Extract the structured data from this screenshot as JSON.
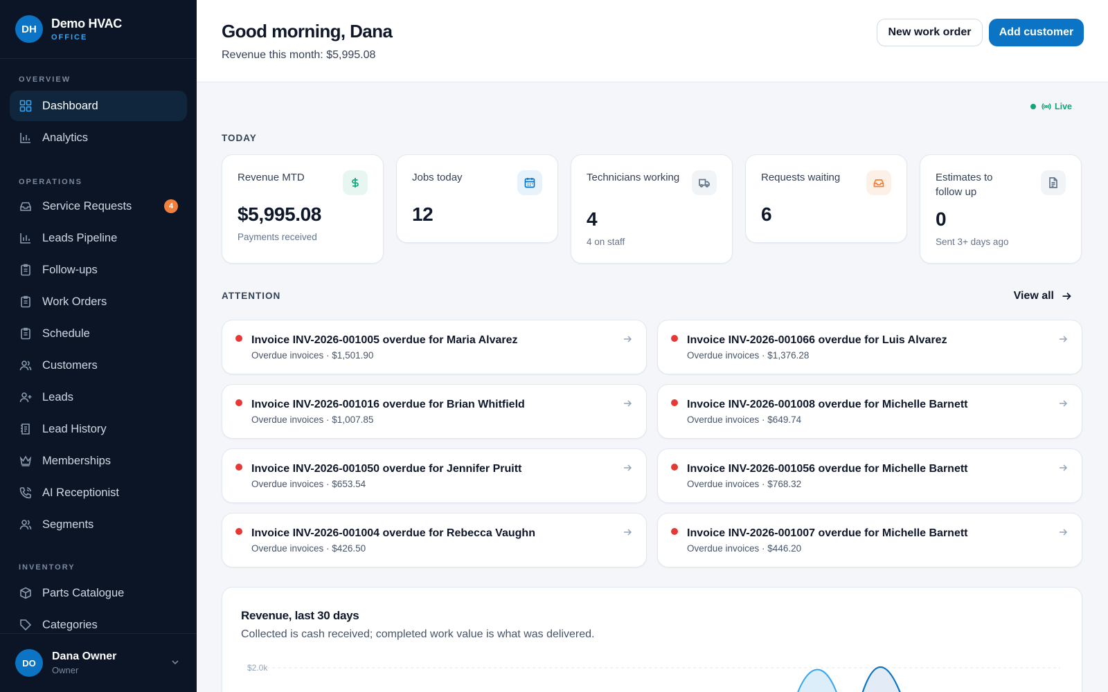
{
  "brand": {
    "initials": "DH",
    "name": "Demo HVAC",
    "sub": "OFFICE"
  },
  "sidebar": {
    "sections": {
      "overview": "OVERVIEW",
      "operations": "OPERATIONS",
      "inventory": "INVENTORY"
    },
    "items": [
      {
        "label": "Dashboard",
        "icon": "grid-icon"
      },
      {
        "label": "Analytics",
        "icon": "bar-chart-icon"
      },
      {
        "label": "Service Requests",
        "icon": "inbox-icon",
        "badge": "4"
      },
      {
        "label": "Leads Pipeline",
        "icon": "bar-chart-icon"
      },
      {
        "label": "Follow-ups",
        "icon": "clipboard-icon"
      },
      {
        "label": "Work Orders",
        "icon": "clipboard-icon"
      },
      {
        "label": "Schedule",
        "icon": "clipboard-icon"
      },
      {
        "label": "Customers",
        "icon": "users-icon"
      },
      {
        "label": "Leads",
        "icon": "user-plus-icon"
      },
      {
        "label": "Lead History",
        "icon": "history-icon"
      },
      {
        "label": "Memberships",
        "icon": "crown-icon"
      },
      {
        "label": "AI Receptionist",
        "icon": "phone-icon"
      },
      {
        "label": "Segments",
        "icon": "users-icon"
      },
      {
        "label": "Parts Catalogue",
        "icon": "box-icon"
      },
      {
        "label": "Categories",
        "icon": "tag-icon"
      }
    ]
  },
  "user": {
    "initials": "DO",
    "name": "Dana Owner",
    "role": "Owner"
  },
  "header": {
    "greeting": "Good morning, Dana",
    "revenue_line": "Revenue this month: $5,995.08",
    "new_work_order": "New work order",
    "add_customer": "Add customer"
  },
  "live": "Live",
  "today": {
    "label": "TODAY",
    "stats": [
      {
        "title": "Revenue MTD",
        "value": "$5,995.08",
        "sub": "Payments received",
        "icon": "dollar-icon",
        "color": "#16a37a"
      },
      {
        "title": "Jobs today",
        "value": "12",
        "sub": "",
        "icon": "calendar-icon",
        "color": "#0b74c5"
      },
      {
        "title": "Technicians working",
        "value": "4",
        "sub": "4 on staff",
        "icon": "truck-icon",
        "color": "#64748b"
      },
      {
        "title": "Requests waiting",
        "value": "6",
        "sub": "",
        "icon": "inbox-icon",
        "color": "#f0803c"
      },
      {
        "title": "Estimates to follow up",
        "value": "0",
        "sub": "Sent 3+ days ago",
        "icon": "document-icon",
        "color": "#64748b"
      }
    ]
  },
  "attention": {
    "label": "ATTENTION",
    "view_all": "View all",
    "items": [
      {
        "title": "Invoice INV-2026-001005 overdue for Maria Alvarez",
        "sub": "Overdue invoices · $1,501.90"
      },
      {
        "title": "Invoice INV-2026-001066 overdue for Luis Alvarez",
        "sub": "Overdue invoices · $1,376.28"
      },
      {
        "title": "Invoice INV-2026-001016 overdue for Brian Whitfield",
        "sub": "Overdue invoices · $1,007.85"
      },
      {
        "title": "Invoice INV-2026-001008 overdue for Michelle Barnett",
        "sub": "Overdue invoices · $649.74"
      },
      {
        "title": "Invoice INV-2026-001050 overdue for Jennifer Pruitt",
        "sub": "Overdue invoices · $653.54"
      },
      {
        "title": "Invoice INV-2026-001056 overdue for Michelle Barnett",
        "sub": "Overdue invoices · $768.32"
      },
      {
        "title": "Invoice INV-2026-001004 overdue for Rebecca Vaughn",
        "sub": "Overdue invoices · $426.50"
      },
      {
        "title": "Invoice INV-2026-001007 overdue for Michelle Barnett",
        "sub": "Overdue invoices · $446.20"
      }
    ]
  },
  "revenue_chart": {
    "title": "Revenue, last 30 days",
    "subtitle": "Collected is cash received; completed work value is what was delivered.",
    "y_tick": "$2.0k"
  },
  "colors": {
    "accent": "#0b74c5",
    "sidebar_bg": "#0b1526",
    "alert": "#e53935",
    "live": "#16a37a"
  }
}
